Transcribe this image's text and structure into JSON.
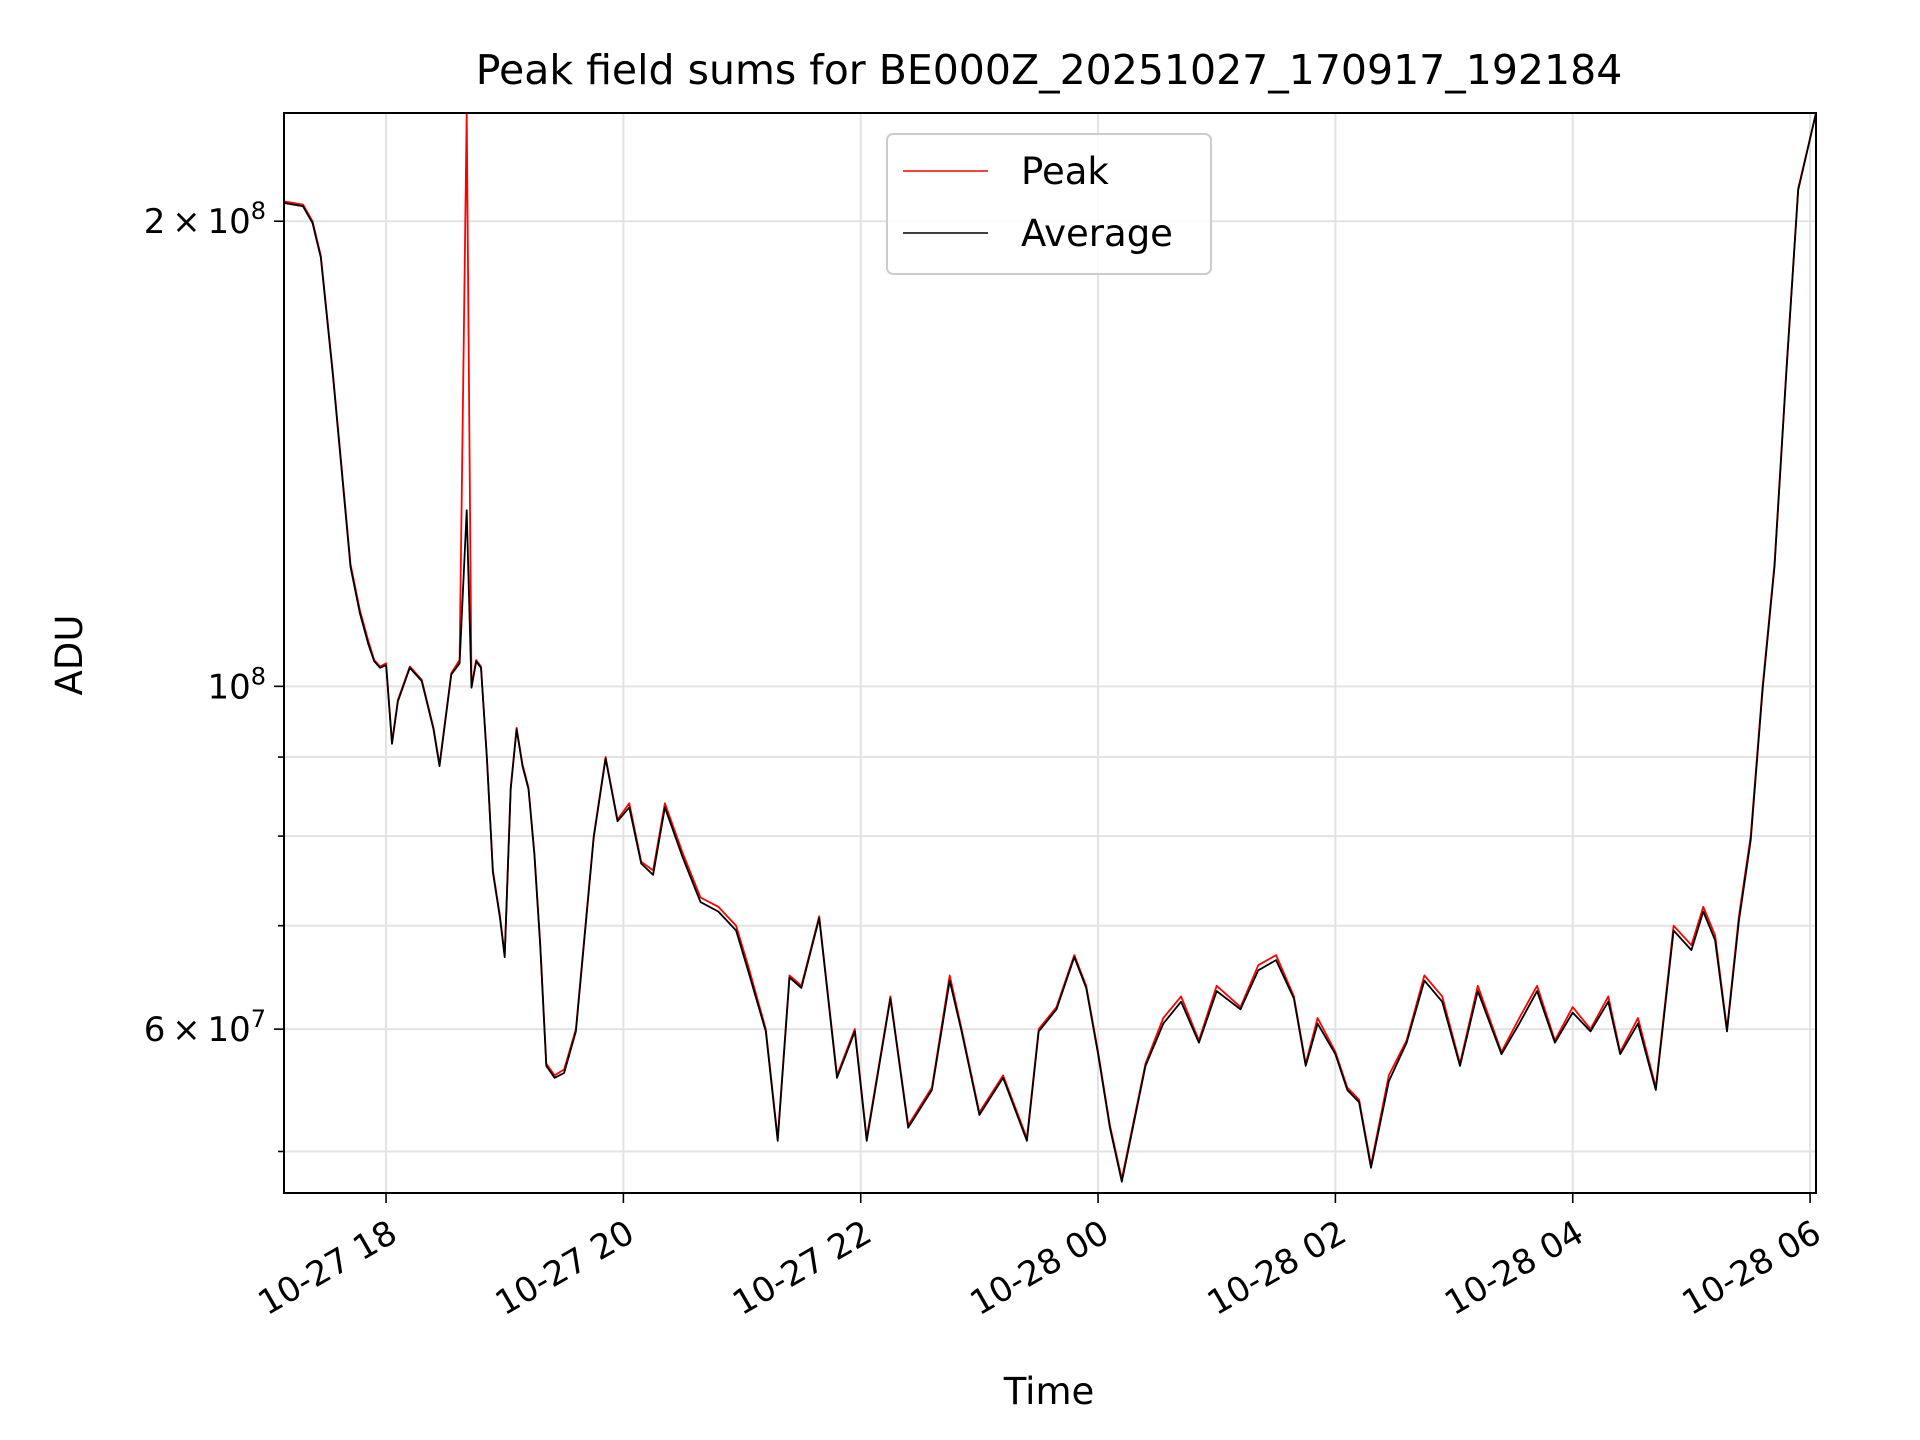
{
  "chart_data": {
    "type": "line",
    "title": "Peak field sums for BE000Z_20251027_170917_192184",
    "xlabel": "Time",
    "ylabel": "ADU",
    "yscale": "log",
    "ylim": [
      47000000,
      235000000
    ],
    "xlim_hours": [
      -0.86,
      12.05
    ],
    "x_tick_labels": [
      "10-27 18",
      "10-27 20",
      "10-27 22",
      "10-28 00",
      "10-28 02",
      "10-28 04",
      "10-28 06"
    ],
    "x_tick_hours": [
      0,
      2,
      4,
      6,
      8,
      10,
      12
    ],
    "y_major_ticks": [
      {
        "value": 60000000,
        "mantissa": "6",
        "exponent": "7"
      },
      {
        "value": 100000000,
        "mantissa": "",
        "exponent": "8"
      },
      {
        "value": 200000000,
        "mantissa": "2",
        "exponent": "8"
      }
    ],
    "y_minor_ticks": [
      50000000,
      70000000,
      80000000,
      90000000,
      300000000
    ],
    "legend": {
      "position": "top-center",
      "entries": [
        "Peak",
        "Average"
      ]
    },
    "colors": {
      "Peak": "#ff0000",
      "Average": "#000000"
    },
    "series": [
      {
        "name": "Peak",
        "color": "#ff0000",
        "x_hours": [
          -0.86,
          -0.7,
          -0.62,
          -0.55,
          -0.45,
          -0.38,
          -0.3,
          -0.22,
          -0.15,
          -0.1,
          -0.05,
          0.0,
          0.05,
          0.1,
          0.2,
          0.3,
          0.4,
          0.45,
          0.55,
          0.62,
          0.68,
          0.72,
          0.76,
          0.8,
          0.85,
          0.9,
          0.96,
          1.0,
          1.05,
          1.1,
          1.15,
          1.2,
          1.25,
          1.3,
          1.35,
          1.42,
          1.5,
          1.6,
          1.75,
          1.85,
          1.95,
          2.05,
          2.15,
          2.25,
          2.35,
          2.5,
          2.65,
          2.8,
          2.95,
          3.05,
          3.2,
          3.3,
          3.4,
          3.5,
          3.65,
          3.8,
          3.95,
          4.05,
          4.25,
          4.4,
          4.6,
          4.75,
          4.85,
          5.0,
          5.2,
          5.4,
          5.5,
          5.65,
          5.8,
          5.9,
          6.0,
          6.1,
          6.2,
          6.4,
          6.55,
          6.7,
          6.85,
          7.0,
          7.2,
          7.35,
          7.5,
          7.65,
          7.75,
          7.85,
          8.0,
          8.1,
          8.2,
          8.3,
          8.45,
          8.6,
          8.75,
          8.9,
          9.05,
          9.2,
          9.4,
          9.55,
          9.7,
          9.85,
          10.0,
          10.15,
          10.3,
          10.4,
          10.55,
          10.7,
          10.85,
          11.0,
          11.1,
          11.2,
          11.3,
          11.4,
          11.5,
          11.6,
          11.7,
          11.8,
          11.9,
          12.05
        ],
        "values": [
          206000000,
          205000000,
          200000000,
          190000000,
          160000000,
          140000000,
          120000000,
          112000000,
          107000000,
          104000000,
          103000000,
          103500000,
          92000000,
          98000000,
          103000000,
          101000000,
          94000000,
          89000000,
          102000000,
          104000000,
          235000000,
          100000000,
          104000000,
          103000000,
          90000000,
          76000000,
          71000000,
          67000000,
          86000000,
          94000000,
          89000000,
          86000000,
          78000000,
          68000000,
          57000000,
          56000000,
          56500000,
          60000000,
          80000000,
          90000000,
          82000000,
          84000000,
          77000000,
          76000000,
          84000000,
          78000000,
          73000000,
          72000000,
          70000000,
          66000000,
          60000000,
          51000000,
          65000000,
          64000000,
          71000000,
          56000000,
          60000000,
          51000000,
          63000000,
          52000000,
          55000000,
          65000000,
          60000000,
          53000000,
          56000000,
          51000000,
          60000000,
          62000000,
          67000000,
          64000000,
          58000000,
          52000000,
          48000000,
          57000000,
          61000000,
          63000000,
          59000000,
          64000000,
          62000000,
          66000000,
          67000000,
          63000000,
          57000000,
          61000000,
          58000000,
          55000000,
          54000000,
          49000000,
          56000000,
          59000000,
          65000000,
          63000000,
          57000000,
          64000000,
          58000000,
          61000000,
          64000000,
          59000000,
          62000000,
          60000000,
          63000000,
          58000000,
          61000000,
          55000000,
          70000000,
          68000000,
          72000000,
          69000000,
          60000000,
          71000000,
          80000000,
          100000000,
          120000000,
          160000000,
          210000000,
          235000000
        ]
      },
      {
        "name": "Average",
        "color": "#000000",
        "x_hours": [
          -0.86,
          -0.7,
          -0.62,
          -0.55,
          -0.45,
          -0.38,
          -0.3,
          -0.22,
          -0.15,
          -0.1,
          -0.05,
          0.0,
          0.05,
          0.1,
          0.2,
          0.3,
          0.4,
          0.45,
          0.55,
          0.62,
          0.68,
          0.72,
          0.76,
          0.8,
          0.85,
          0.9,
          0.96,
          1.0,
          1.05,
          1.1,
          1.15,
          1.2,
          1.25,
          1.3,
          1.35,
          1.42,
          1.5,
          1.6,
          1.75,
          1.85,
          1.95,
          2.05,
          2.15,
          2.25,
          2.35,
          2.5,
          2.65,
          2.8,
          2.95,
          3.05,
          3.2,
          3.3,
          3.4,
          3.5,
          3.65,
          3.8,
          3.95,
          4.05,
          4.25,
          4.4,
          4.6,
          4.75,
          4.85,
          5.0,
          5.2,
          5.4,
          5.5,
          5.65,
          5.8,
          5.9,
          6.0,
          6.1,
          6.2,
          6.4,
          6.55,
          6.7,
          6.85,
          7.0,
          7.2,
          7.35,
          7.5,
          7.65,
          7.75,
          7.85,
          8.0,
          8.1,
          8.2,
          8.3,
          8.45,
          8.6,
          8.75,
          8.9,
          9.05,
          9.2,
          9.4,
          9.55,
          9.7,
          9.85,
          10.0,
          10.15,
          10.3,
          10.4,
          10.55,
          10.7,
          10.85,
          11.0,
          11.1,
          11.2,
          11.3,
          11.4,
          11.5,
          11.6,
          11.7,
          11.8,
          11.9,
          12.05
        ],
        "values": [
          205500000,
          204500000,
          199500000,
          189500000,
          159500000,
          139500000,
          119500000,
          111500000,
          106500000,
          103800000,
          102800000,
          103200000,
          91800000,
          97800000,
          102800000,
          100800000,
          93800000,
          88800000,
          101800000,
          103500000,
          130000000,
          99800000,
          103800000,
          102800000,
          89800000,
          75800000,
          70800000,
          66800000,
          85800000,
          93800000,
          88800000,
          85800000,
          77800000,
          67800000,
          56800000,
          55800000,
          56200000,
          59800000,
          79800000,
          89800000,
          81800000,
          83500000,
          76800000,
          75500000,
          83500000,
          77500000,
          72500000,
          71500000,
          69500000,
          65500000,
          59800000,
          50800000,
          64800000,
          63800000,
          70800000,
          55800000,
          59800000,
          50800000,
          62800000,
          51800000,
          54800000,
          64500000,
          59800000,
          52800000,
          55800000,
          50800000,
          59800000,
          61800000,
          66800000,
          63800000,
          57800000,
          51800000,
          47800000,
          56800000,
          60500000,
          62500000,
          58800000,
          63500000,
          61800000,
          65500000,
          66500000,
          62800000,
          56800000,
          60500000,
          57800000,
          54800000,
          53800000,
          48800000,
          55500000,
          58800000,
          64500000,
          62500000,
          56800000,
          63500000,
          57800000,
          60500000,
          63500000,
          58800000,
          61500000,
          59800000,
          62500000,
          57800000,
          60500000,
          54800000,
          69500000,
          67500000,
          71500000,
          68500000,
          59800000,
          70500000,
          79500000,
          99500000,
          119500000,
          159500000,
          209500000,
          235000000
        ]
      }
    ]
  }
}
